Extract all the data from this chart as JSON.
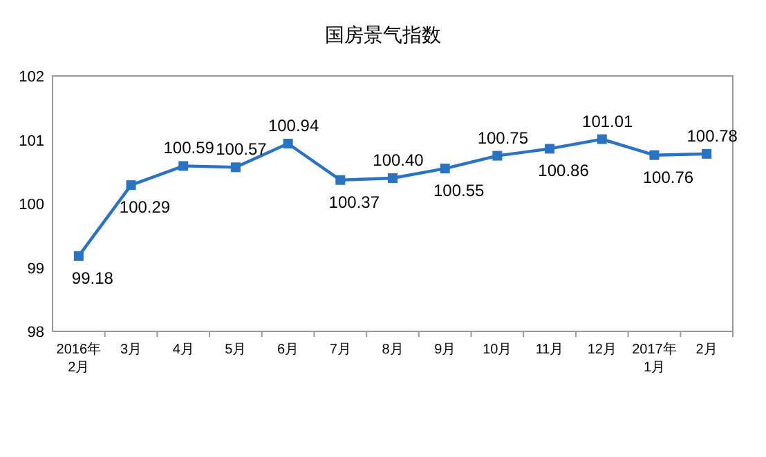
{
  "chart_data": {
    "type": "line",
    "title": "国房景气指数",
    "categories": [
      "2016年\n2月",
      "3月",
      "4月",
      "5月",
      "6月",
      "7月",
      "8月",
      "9月",
      "10月",
      "11月",
      "12月",
      "2017年\n1月",
      "2月"
    ],
    "series": [
      {
        "color": "#2a72c4",
        "values": [
          99.18,
          100.29,
          100.59,
          100.57,
          100.94,
          100.37,
          100.4,
          100.55,
          100.75,
          100.86,
          101.01,
          100.76,
          100.78
        ],
        "value_labels": [
          "99.18",
          "100.29",
          "100.59",
          "100.57",
          "100.94",
          "100.37",
          "100.40",
          "100.55",
          "100.75",
          "100.86",
          "101.01",
          "100.76",
          "100.78"
        ]
      }
    ],
    "ylim": [
      98,
      102
    ],
    "yticks": [
      98,
      99,
      100,
      101,
      102
    ],
    "grid": false,
    "marker": "square",
    "line_style": "solid"
  }
}
